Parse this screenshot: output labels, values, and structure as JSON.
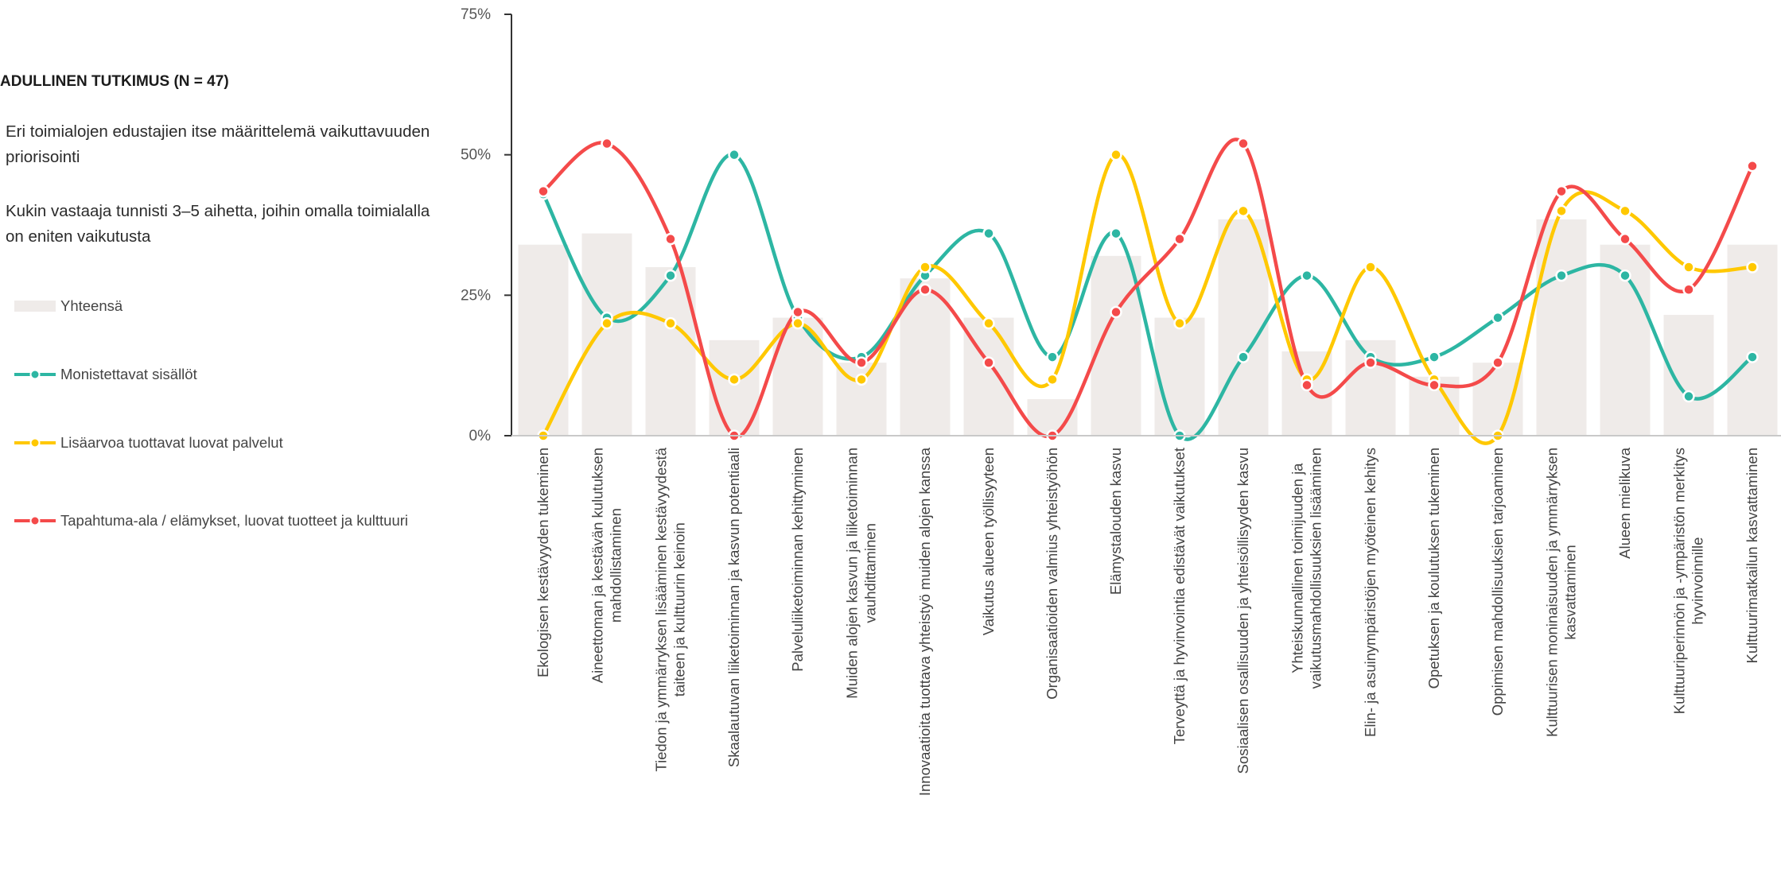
{
  "panel": {
    "heading": "ADULLINEN TUTKIMUS (N = 47)",
    "note1": "Eri toimialojen edustajien itse määrittelemä vaikuttavuuden priorisointi",
    "note2": "Kukin vastaaja tunnisti 3–5 aihetta, joihin omalla toimialalla on eniten vaikutusta"
  },
  "chart_data": {
    "type": "bar",
    "y_ticks": [
      "0%",
      "25%",
      "50%",
      "75%"
    ],
    "ylim": [
      0,
      75
    ],
    "grid": false,
    "legend_position": "left",
    "categories": [
      [
        "Ekologisen kestävyyden tukeminen"
      ],
      [
        "Aineettoman ja kestävän kulutuksen",
        "mahdollistaminen"
      ],
      [
        "Tiedon ja ymmärryksen lisääminen kestävyydestä",
        "taiteen ja kulttuurin keinoin"
      ],
      [
        "Skaalautuvan liiketoiminnan ja kasvun potentiaali"
      ],
      [
        "Palveluliiketoiminnan kehittyminen"
      ],
      [
        "Muiden alojen kasvun ja liiketoiminnan",
        "vauhdittaminen"
      ],
      [
        "Innovaatioita tuottava yhteistyö muiden alojen kanssa"
      ],
      [
        "Vaikutus alueen työllisyyteen"
      ],
      [
        "Organisaatioiden valmius yhteistyöhön"
      ],
      [
        "Elämystalouden kasvu"
      ],
      [
        "Terveyttä ja hyvinvointia edistävät vaikutukset"
      ],
      [
        "Sosiaalisen osallisuuden ja yhteisöllisyyden kasvu"
      ],
      [
        "Yhteiskunnallinen toimijuuden ja",
        "vaikutusmahdollisuuksien lisääminen"
      ],
      [
        "Elin- ja asuinympäristöjen myöteinen kehitys"
      ],
      [
        "Opetuksen ja koulutuksen tukeminen"
      ],
      [
        "Oppimisen mahdollisuuksien tarjoaminen"
      ],
      [
        "Kulttuurisen moninaisuuden ja ymmärryksen",
        "kasvattaminen"
      ],
      [
        "Alueen mielikuva"
      ],
      [
        "Kulttuuriperinnön ja -ympäristön merkitys",
        "hyvinvoinnille"
      ],
      [
        "Kulttuurimatkailun kasvattaminen"
      ]
    ],
    "series": [
      {
        "name": "Yhteensä",
        "kind": "bar",
        "color": "#efebe9",
        "values": [
          34,
          36,
          30,
          17,
          21,
          13,
          28,
          21,
          6.5,
          32,
          21,
          38.5,
          15,
          17,
          10.5,
          13,
          38.5,
          34,
          21.5,
          34
        ]
      },
      {
        "name": "Monistettavat sisällöt",
        "kind": "line",
        "color": "#2db6a3",
        "values": [
          43,
          21,
          28.5,
          50,
          21,
          14,
          28.5,
          36,
          14,
          36,
          0,
          14,
          28.5,
          14,
          14,
          21,
          28.5,
          28.5,
          7,
          14
        ]
      },
      {
        "name": "Lisäarvoa tuottavat luovat palvelut",
        "kind": "line",
        "color": "#ffc800",
        "values": [
          0,
          20,
          20,
          10,
          20,
          10,
          30,
          20,
          10,
          50,
          20,
          40,
          10,
          30,
          10,
          0,
          40,
          40,
          30,
          30
        ]
      },
      {
        "name": "Tapahtuma-ala / elämykset, luovat tuotteet ja kulttuuri",
        "kind": "line",
        "color": "#f44a4a",
        "values": [
          43.5,
          52,
          35,
          0,
          22,
          13,
          26,
          13,
          0,
          22,
          35,
          52,
          9,
          13,
          9,
          13,
          43.5,
          35,
          26,
          48
        ]
      }
    ]
  }
}
